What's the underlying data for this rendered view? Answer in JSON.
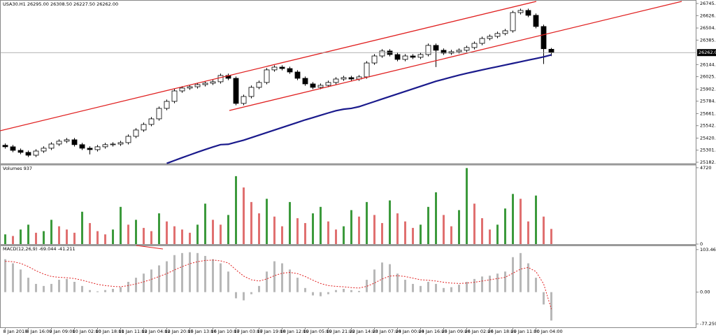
{
  "chart_data": [
    {
      "type": "candlestick",
      "title": "USA30.H1 26295.00 26308.50 26227.50 26262.00",
      "open": [
        25350,
        25335,
        25300,
        25280,
        25252,
        25293,
        25321,
        25362,
        25390,
        25404,
        25356,
        25321,
        25307,
        25335,
        25356,
        25362,
        25376,
        25438,
        25500,
        25555,
        25610,
        25713,
        25782,
        25885,
        25913,
        25926,
        25947,
        25961,
        25975,
        26037,
        26009,
        25762,
        25830,
        25920,
        25968,
        26092,
        26119,
        26105,
        26071,
        26009,
        25954,
        25920,
        25940,
        25968,
        26002,
        26016,
        26002,
        26023,
        26160,
        26229,
        26278,
        26243,
        26195,
        26229,
        26216,
        26243,
        26333,
        26285,
        26257,
        26271,
        26285,
        26312,
        26353,
        26401,
        26422,
        26450,
        26477,
        26656,
        26677,
        26629,
        26519,
        26295
      ],
      "high": [
        25368,
        25353,
        25318,
        25298,
        25311,
        25339,
        25380,
        25408,
        25422,
        25422,
        25374,
        25339,
        25353,
        25374,
        25380,
        25394,
        25456,
        25518,
        25573,
        25628,
        25731,
        25800,
        25903,
        25931,
        25944,
        25965,
        25979,
        25993,
        26055,
        26055,
        26027,
        25848,
        25938,
        25986,
        26110,
        26137,
        26137,
        26123,
        26089,
        26027,
        25972,
        25958,
        25986,
        26020,
        26034,
        26034,
        26041,
        26178,
        26247,
        26296,
        26296,
        26261,
        26247,
        26247,
        26261,
        26351,
        26351,
        26303,
        26289,
        26303,
        26330,
        26371,
        26419,
        26440,
        26468,
        26495,
        26674,
        26695,
        26695,
        26647,
        26537,
        26308.5
      ],
      "low": [
        25317,
        25282,
        25262,
        25234,
        25234,
        25275,
        25303,
        25344,
        25372,
        25338,
        25303,
        25260,
        25289,
        25317,
        25338,
        25344,
        25358,
        25420,
        25482,
        25537,
        25592,
        25695,
        25764,
        25867,
        25895,
        25908,
        25929,
        25943,
        25957,
        25991,
        25744,
        25744,
        25812,
        25902,
        25950,
        26074,
        26087,
        26053,
        25991,
        25936,
        25902,
        25902,
        25922,
        25950,
        25984,
        25984,
        25984,
        26005,
        26142,
        26211,
        26225,
        26177,
        26177,
        26198,
        26198,
        26225,
        26120,
        26239,
        26239,
        26253,
        26267,
        26294,
        26335,
        26383,
        26404,
        26432,
        26459,
        26638,
        26611,
        26501,
        26150,
        26227.5
      ],
      "close": [
        25335,
        25300,
        25280,
        25252,
        25293,
        25321,
        25362,
        25390,
        25404,
        25356,
        25321,
        25307,
        25335,
        25356,
        25362,
        25376,
        25438,
        25500,
        25555,
        25610,
        25713,
        25782,
        25885,
        25913,
        25926,
        25947,
        25961,
        25975,
        26037,
        26009,
        25762,
        25830,
        25920,
        25968,
        26092,
        26119,
        26105,
        26071,
        26009,
        25954,
        25920,
        25940,
        25968,
        26002,
        26016,
        26002,
        26023,
        26160,
        26229,
        26278,
        26243,
        26195,
        26229,
        26216,
        26243,
        26333,
        26285,
        26257,
        26271,
        26285,
        26312,
        26353,
        26401,
        26422,
        26450,
        26477,
        26656,
        26677,
        26629,
        26519,
        26300,
        26262
      ],
      "up_color": "#ffffff",
      "down_color": "#000000",
      "ma": {
        "color": "#1a1a8c",
        "values": [
          null,
          null,
          null,
          null,
          null,
          null,
          null,
          null,
          null,
          null,
          null,
          null,
          null,
          null,
          null,
          null,
          null,
          null,
          null,
          null,
          null,
          25172,
          25200,
          25228,
          25255,
          25282,
          25308,
          25333,
          25356,
          25360,
          25380,
          25400,
          25425,
          25450,
          25475,
          25500,
          25525,
          25550,
          25575,
          25600,
          25622,
          25645,
          25668,
          25690,
          25705,
          25713,
          25730,
          25755,
          25780,
          25805,
          25830,
          25855,
          25880,
          25905,
          25930,
          25955,
          25980,
          26000,
          26020,
          26040,
          26058,
          26075,
          26092,
          26108,
          26124,
          26140,
          26156,
          26172,
          26188,
          26204,
          26220,
          26240
        ]
      },
      "current_price": {
        "value": 26262,
        "label": "26262.00"
      },
      "ylim": [
        25169,
        26766
      ],
      "yticks": [
        {
          "value": 26745.3,
          "label": "26745.30"
        },
        {
          "value": 26626,
          "label": "26626.00"
        },
        {
          "value": 26504.1,
          "label": "26504.10"
        },
        {
          "value": 26385,
          "label": "26385.00"
        },
        {
          "value": 26144.1,
          "label": "26144.10"
        },
        {
          "value": 26025.3,
          "label": "26025.30"
        },
        {
          "value": 25902.9,
          "label": "25902.90"
        },
        {
          "value": 25784.1,
          "label": "25784.10"
        },
        {
          "value": 25661.7,
          "label": "25661.70"
        },
        {
          "value": 25542.9,
          "label": "25542.90"
        },
        {
          "value": 25420.5,
          "label": "25420.50"
        },
        {
          "value": 25301.7,
          "label": "25301.70"
        },
        {
          "value": 25182.9,
          "label": "25182.90"
        }
      ]
    },
    {
      "type": "volume",
      "title": "Volumes 937",
      "values": [
        600,
        500,
        900,
        1200,
        700,
        800,
        1500,
        1100,
        900,
        700,
        2000,
        1300,
        800,
        600,
        900,
        2300,
        1200,
        1500,
        1000,
        800,
        1900,
        1400,
        1100,
        900,
        700,
        1200,
        2500,
        1500,
        1200,
        1800,
        4200,
        3500,
        2600,
        1900,
        2800,
        1700,
        1100,
        2600,
        1600,
        1300,
        1900,
        2300,
        1400,
        900,
        1100,
        2100,
        1700,
        2600,
        1800,
        1300,
        2700,
        1900,
        1400,
        1000,
        1200,
        2300,
        3200,
        1800,
        1100,
        2100,
        4700,
        2500,
        1600,
        900,
        1200,
        2200,
        3100,
        2800,
        1400,
        3000,
        1700,
        937
      ],
      "up_color": "#3c9a3c",
      "down_color": "#e07070",
      "ylim": [
        0,
        4800
      ],
      "yticks": [
        4720,
        0
      ]
    },
    {
      "type": "macd",
      "title": "MACD(12,26,9) -69.044 -41.211",
      "categories": [
        "8 Jan 2018",
        null,
        null,
        "8 Jan 16:00",
        null,
        null,
        "9 Jan 09:00",
        null,
        null,
        "10 Jan 02:00",
        null,
        null,
        "10 Jan 18:00",
        null,
        null,
        "11 Jan 11:00",
        null,
        null,
        "12 Jan 04:00",
        null,
        null,
        "12 Jan 20:00",
        null,
        null,
        "15 Jan 13:00",
        null,
        null,
        "16 Jan 10:00",
        null,
        null,
        "17 Jan 03:00",
        null,
        null,
        "17 Jan 19:00",
        null,
        null,
        "18 Jan 12:00",
        null,
        null,
        "19 Jan 05:00",
        null,
        null,
        "19 Jan 21:00",
        null,
        null,
        "22 Jan 14:00",
        null,
        null,
        "23 Jan 07:00",
        null,
        null,
        "24 Jan 00:00",
        null,
        null,
        "24 Jan 16:00",
        null,
        null,
        "25 Jan 09:00",
        null,
        null,
        "26 Jan 02:00",
        null,
        null,
        "26 Jan 18:00",
        null,
        null,
        "29 Jan 11:00",
        null,
        null,
        "30 Jan 04:00",
        null,
        null
      ],
      "histogram": {
        "color": "#b8b8b8",
        "values": [
          80,
          70,
          55,
          35,
          20,
          15,
          20,
          30,
          32,
          25,
          15,
          5,
          2,
          5,
          8,
          12,
          25,
          35,
          45,
          55,
          65,
          75,
          90,
          95,
          97,
          95,
          88,
          80,
          70,
          50,
          -15,
          -20,
          -5,
          15,
          50,
          75,
          70,
          55,
          35,
          10,
          -8,
          -10,
          -5,
          5,
          8,
          5,
          3,
          30,
          55,
          72,
          68,
          45,
          30,
          20,
          15,
          25,
          20,
          10,
          12,
          18,
          25,
          32,
          38,
          40,
          45,
          50,
          85,
          95,
          70,
          35,
          -30,
          -69.044
        ]
      },
      "signal": {
        "color": "#e02020",
        "values": [
          75,
          74,
          70,
          62,
          52,
          44,
          38,
          36,
          35,
          33,
          29,
          24,
          19,
          16,
          14,
          13,
          16,
          20,
          25,
          31,
          38,
          45,
          54,
          62,
          69,
          74,
          77,
          78,
          76,
          71,
          54,
          39,
          30,
          27,
          32,
          40,
          46,
          48,
          45,
          38,
          29,
          21,
          16,
          14,
          13,
          11,
          10,
          14,
          22,
          32,
          39,
          40,
          38,
          34,
          30,
          29,
          27,
          24,
          22,
          21,
          22,
          24,
          27,
          30,
          33,
          36,
          46,
          56,
          60,
          50,
          20,
          -41.211
        ]
      },
      "ylim": [
        -85.5,
        110
      ],
      "yticks": [
        103.465,
        {
          "value": 0,
          "label": "0.00"
        },
        -77.259
      ]
    }
  ]
}
